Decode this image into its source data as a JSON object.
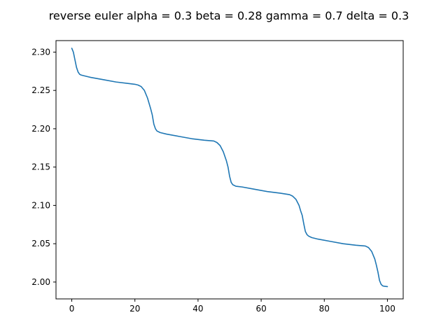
{
  "chart_data": {
    "type": "line",
    "title": "reverse euler alpha = 0.3 beta = 0.28 gamma = 0.7 delta = 0.3",
    "xlabel": "",
    "ylabel": "",
    "xlim": [
      -5,
      105
    ],
    "ylim": [
      1.978,
      2.315
    ],
    "xticks": [
      0,
      20,
      40,
      60,
      80,
      100
    ],
    "yticks": [
      2.0,
      2.05,
      2.1,
      2.15,
      2.2,
      2.25,
      2.3
    ],
    "grid": false,
    "series": [
      {
        "color": "#1f77b4",
        "x": [
          0,
          0.5,
          1,
          1.5,
          2,
          2.5,
          3,
          4,
          6,
          10,
          14,
          18,
          20,
          21,
          22,
          23,
          24,
          25,
          25.5,
          26,
          26.5,
          27,
          28,
          30,
          34,
          38,
          42,
          45,
          46,
          47,
          48,
          49,
          49.5,
          50,
          50.5,
          51,
          52,
          54,
          58,
          62,
          66,
          69,
          70,
          71,
          72,
          72.5,
          73,
          73.5,
          74,
          74.5,
          75,
          76,
          78,
          82,
          86,
          90,
          93,
          94,
          95,
          96,
          96.5,
          97,
          97.5,
          98,
          98.5,
          99,
          100
        ],
        "y": [
          2.305,
          2.3,
          2.29,
          2.28,
          2.274,
          2.271,
          2.27,
          2.269,
          2.267,
          2.264,
          2.261,
          2.259,
          2.258,
          2.257,
          2.255,
          2.25,
          2.24,
          2.226,
          2.218,
          2.206,
          2.2,
          2.197,
          2.195,
          2.193,
          2.19,
          2.187,
          2.185,
          2.184,
          2.182,
          2.178,
          2.17,
          2.158,
          2.15,
          2.138,
          2.13,
          2.127,
          2.125,
          2.124,
          2.121,
          2.118,
          2.116,
          2.114,
          2.112,
          2.108,
          2.1,
          2.093,
          2.087,
          2.076,
          2.066,
          2.062,
          2.06,
          2.058,
          2.056,
          2.053,
          2.05,
          2.048,
          2.047,
          2.045,
          2.04,
          2.03,
          2.022,
          2.013,
          2.002,
          1.997,
          1.995,
          1.9945,
          1.994
        ]
      }
    ]
  }
}
